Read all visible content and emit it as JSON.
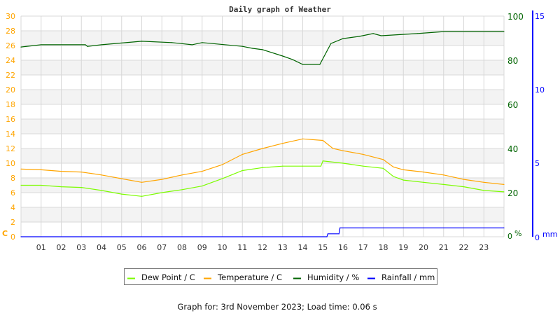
{
  "chart_data": {
    "type": "line",
    "title": "Daily graph of Weather",
    "footer": "Graph for: 3rd November 2023; Load time: 0.06 s",
    "x_ticks": [
      "01",
      "02",
      "03",
      "04",
      "05",
      "06",
      "07",
      "08",
      "09",
      "10",
      "11",
      "12",
      "13",
      "14",
      "15",
      "16",
      "17",
      "18",
      "19",
      "20",
      "21",
      "22",
      "23"
    ],
    "xlim": [
      0,
      24
    ],
    "grid": true,
    "legend_placement": "bottom",
    "axes": {
      "left": {
        "unit": "C",
        "ylim": [
          0,
          30
        ],
        "ticks": [
          0,
          2,
          4,
          6,
          8,
          10,
          12,
          14,
          16,
          18,
          20,
          22,
          24,
          26,
          28,
          30
        ],
        "color": "#ffa500"
      },
      "right_humidity": {
        "unit": "%",
        "ylim": [
          0,
          100
        ],
        "ticks": [
          0,
          20,
          40,
          60,
          80,
          100
        ],
        "color": "#006400"
      },
      "right_rain": {
        "unit": "mm",
        "ylim": [
          0,
          15
        ],
        "ticks": [
          0,
          5,
          10,
          15
        ],
        "color": "#0000ff"
      }
    },
    "series": [
      {
        "name": "Dew Point / C",
        "axis": "left",
        "color": "#7cfc00",
        "x": [
          0,
          1,
          2,
          3,
          4,
          5,
          6,
          7,
          8,
          9,
          10,
          11,
          12,
          13,
          14,
          14.9,
          15,
          16,
          17,
          18,
          18.5,
          19,
          20,
          21,
          22,
          23,
          24
        ],
        "y": [
          7.0,
          7.0,
          6.8,
          6.7,
          6.3,
          5.8,
          5.5,
          6.0,
          6.4,
          6.9,
          7.9,
          9.0,
          9.4,
          9.6,
          9.6,
          9.6,
          10.3,
          10.0,
          9.6,
          9.3,
          8.2,
          7.7,
          7.4,
          7.1,
          6.8,
          6.3,
          6.1
        ]
      },
      {
        "name": "Temperature / C",
        "axis": "left",
        "color": "#ffa500",
        "x": [
          0,
          1,
          2,
          3,
          4,
          5,
          6,
          7,
          8,
          9,
          10,
          11,
          12,
          13,
          14,
          15,
          15.5,
          16,
          17,
          18,
          18.5,
          19,
          20,
          21,
          22,
          23,
          24
        ],
        "y": [
          9.2,
          9.1,
          8.9,
          8.8,
          8.4,
          7.9,
          7.4,
          7.8,
          8.4,
          8.9,
          9.8,
          11.2,
          12.0,
          12.7,
          13.3,
          13.1,
          12.0,
          11.7,
          11.2,
          10.5,
          9.5,
          9.1,
          8.8,
          8.4,
          7.8,
          7.4,
          7.1
        ]
      },
      {
        "name": "Humidity / %",
        "axis": "right_humidity",
        "color": "#006400",
        "x": [
          0,
          1,
          3.2,
          3.3,
          4,
          6,
          7.5,
          8.5,
          9,
          11,
          11.5,
          12,
          13,
          13.5,
          14,
          14.85,
          15.4,
          16,
          16.8,
          17.5,
          17.9,
          19.7,
          21,
          24
        ],
        "y": [
          86.0,
          87.0,
          87.0,
          86.3,
          87.0,
          88.6,
          88.0,
          87.0,
          88.0,
          86.3,
          85.4,
          84.8,
          81.9,
          80.3,
          78.1,
          78.1,
          87.6,
          89.8,
          90.8,
          92.1,
          91.1,
          92.1,
          93.0,
          93.0
        ]
      },
      {
        "name": "Rainfall / mm",
        "axis": "right_rain",
        "color": "#0000ff",
        "x": [
          0,
          15.2,
          15.25,
          15.8,
          15.85,
          24
        ],
        "y": [
          0,
          0,
          0.2,
          0.2,
          0.6,
          0.6
        ]
      }
    ]
  }
}
